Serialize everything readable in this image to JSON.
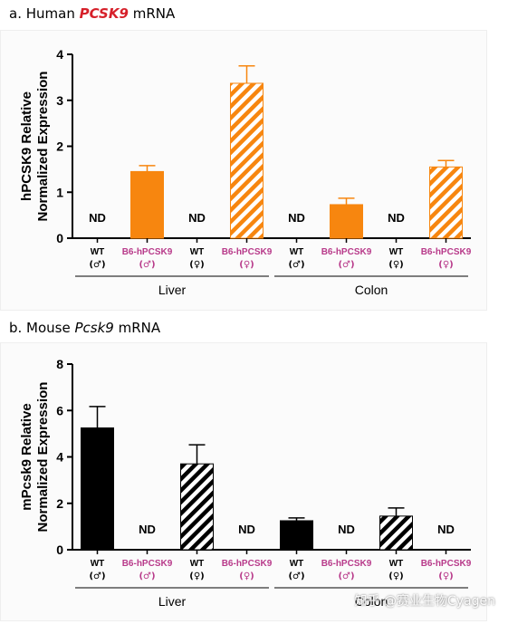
{
  "colors": {
    "human": "#f7860f",
    "mouse": "#000000",
    "genotype_label_wt": "#000000",
    "genotype_label_b6": "#b83a8a"
  },
  "panel_a": {
    "prefix": "a. Human ",
    "gene": "PCSK9",
    "suffix": " mRNA"
  },
  "panel_b": {
    "prefix": "b. Mouse ",
    "gene": "Pcsk9",
    "suffix": " mRNA"
  },
  "watermark": "知乎 @赛业生物Cyagen",
  "chart_data": [
    {
      "type": "bar",
      "ylabel_line1": "hPCSK9 Relative",
      "ylabel_line2": "Normalized Expression",
      "ylim": [
        0,
        4
      ],
      "yticks": [
        "0",
        "1",
        "2",
        "3",
        "4"
      ],
      "bars": [
        {
          "group": "Liver",
          "genotype": "WT",
          "sex": "(♂)",
          "value": 0,
          "error": 0,
          "pattern": "solid",
          "nd": true
        },
        {
          "group": "Liver",
          "genotype": "B6-hPCSK9",
          "sex": "(♂)",
          "value": 1.45,
          "error": 0.13,
          "pattern": "solid",
          "nd": false
        },
        {
          "group": "Liver",
          "genotype": "WT",
          "sex": "(♀)",
          "value": 0,
          "error": 0,
          "pattern": "hatched",
          "nd": true
        },
        {
          "group": "Liver",
          "genotype": "B6-hPCSK9",
          "sex": "(♀)",
          "value": 3.37,
          "error": 0.38,
          "pattern": "hatched",
          "nd": false
        },
        {
          "group": "Colon",
          "genotype": "WT",
          "sex": "(♂)",
          "value": 0,
          "error": 0,
          "pattern": "solid",
          "nd": true
        },
        {
          "group": "Colon",
          "genotype": "B6-hPCSK9",
          "sex": "(♂)",
          "value": 0.73,
          "error": 0.14,
          "pattern": "solid",
          "nd": false
        },
        {
          "group": "Colon",
          "genotype": "WT",
          "sex": "(♀)",
          "value": 0,
          "error": 0,
          "pattern": "hatched",
          "nd": true
        },
        {
          "group": "Colon",
          "genotype": "B6-hPCSK9",
          "sex": "(♀)",
          "value": 1.55,
          "error": 0.14,
          "pattern": "hatched",
          "nd": false
        }
      ],
      "nd_label": "ND",
      "groups": [
        "Liver",
        "Colon"
      ]
    },
    {
      "type": "bar",
      "ylabel_line1": "mPcsk9 Relative",
      "ylabel_line2": "Normalized Expression",
      "ylim": [
        0,
        8
      ],
      "yticks": [
        "0",
        "2",
        "4",
        "6",
        "8"
      ],
      "bars": [
        {
          "group": "Liver",
          "genotype": "WT",
          "sex": "(♂)",
          "value": 5.25,
          "error": 0.92,
          "pattern": "solid",
          "nd": false
        },
        {
          "group": "Liver",
          "genotype": "B6-hPCSK9",
          "sex": "(♂)",
          "value": 0,
          "error": 0,
          "pattern": "solid",
          "nd": true
        },
        {
          "group": "Liver",
          "genotype": "WT",
          "sex": "(♀)",
          "value": 3.7,
          "error": 0.82,
          "pattern": "hatched",
          "nd": false
        },
        {
          "group": "Liver",
          "genotype": "B6-hPCSK9",
          "sex": "(♀)",
          "value": 0,
          "error": 0,
          "pattern": "hatched",
          "nd": true
        },
        {
          "group": "Colon",
          "genotype": "WT",
          "sex": "(♂)",
          "value": 1.25,
          "error": 0.12,
          "pattern": "solid",
          "nd": false
        },
        {
          "group": "Colon",
          "genotype": "B6-hPCSK9",
          "sex": "(♂)",
          "value": 0,
          "error": 0,
          "pattern": "solid",
          "nd": true
        },
        {
          "group": "Colon",
          "genotype": "WT",
          "sex": "(♀)",
          "value": 1.45,
          "error": 0.35,
          "pattern": "hatched",
          "nd": false
        },
        {
          "group": "Colon",
          "genotype": "B6-hPCSK9",
          "sex": "(♀)",
          "value": 0,
          "error": 0,
          "pattern": "hatched",
          "nd": true
        }
      ],
      "nd_label": "ND",
      "groups": [
        "Liver",
        "Colon"
      ]
    }
  ]
}
